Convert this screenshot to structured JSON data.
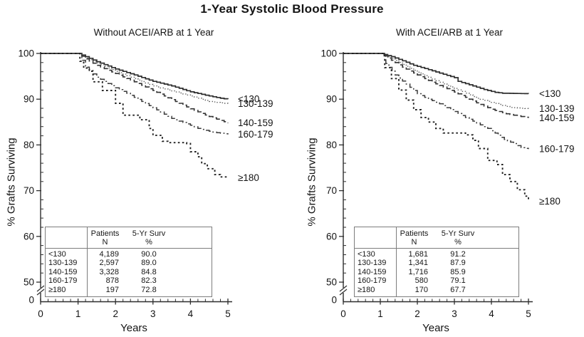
{
  "title": "1-Year Systolic Blood Pressure",
  "colors": {
    "axis": "#2e2e2e",
    "text": "#141414",
    "table_border": "#7d7d7d",
    "background": "#ffffff"
  },
  "chart_data": [
    {
      "type": "line",
      "subtype": "kaplan-meier-survival",
      "title": "Without ACEI/ARB at 1 Year",
      "xlabel": "Years",
      "ylabel": "% Grafts Surviving",
      "xlim": [
        0,
        5
      ],
      "ylim": [
        0,
        100
      ],
      "y_display_range": [
        50,
        100
      ],
      "y_axis_break": true,
      "grid": false,
      "legend_position": "labels-right-of-curves",
      "x_ticks": [
        0,
        1,
        2,
        3,
        4,
        5
      ],
      "y_ticks": [
        100,
        90,
        80,
        70,
        60,
        50
      ],
      "y_bottom_tick": "0",
      "x_minor_step": 0.2,
      "y_minor_step": 2,
      "series": [
        {
          "name": "under-130",
          "label": "<130",
          "linestyle": "solid",
          "step_texture": "fine",
          "points": [
            [
              0,
              100
            ],
            [
              1,
              100
            ],
            [
              1.2,
              99.3
            ],
            [
              1.5,
              98.2
            ],
            [
              2,
              96.6
            ],
            [
              2.5,
              95.3
            ],
            [
              3,
              93.9
            ],
            [
              3.5,
              92.9
            ],
            [
              4,
              91.6
            ],
            [
              4.5,
              90.7
            ],
            [
              4.8,
              90.2
            ],
            [
              5,
              90.0
            ]
          ]
        },
        {
          "name": "130-139",
          "label": "130-139",
          "linestyle": "dotted",
          "step_texture": "fine",
          "points": [
            [
              0,
              100
            ],
            [
              1,
              100
            ],
            [
              1.2,
              99.0
            ],
            [
              1.5,
              97.9
            ],
            [
              2,
              96.1
            ],
            [
              2.5,
              94.5
            ],
            [
              3,
              92.9
            ],
            [
              3.5,
              91.8
            ],
            [
              4,
              90.7
            ],
            [
              4.5,
              89.5
            ],
            [
              5,
              89.0
            ]
          ]
        },
        {
          "name": "140-159",
          "label": "140-159",
          "linestyle": "dashed",
          "step_texture": "fine",
          "points": [
            [
              0,
              100
            ],
            [
              1,
              100
            ],
            [
              1.2,
              98.8
            ],
            [
              1.5,
              97.4
            ],
            [
              2,
              95.6
            ],
            [
              2.5,
              93.8
            ],
            [
              3,
              91.9
            ],
            [
              3.5,
              89.9
            ],
            [
              4,
              87.9
            ],
            [
              4.5,
              86.2
            ],
            [
              5,
              84.8
            ]
          ]
        },
        {
          "name": "160-179",
          "label": "160-179",
          "linestyle": "dashdot",
          "step_texture": "fine",
          "points": [
            [
              0,
              100
            ],
            [
              1,
              100
            ],
            [
              1.2,
              97.0
            ],
            [
              1.5,
              94.8
            ],
            [
              2,
              92.5
            ],
            [
              2.3,
              91.3
            ],
            [
              2.9,
              88.6
            ],
            [
              3.5,
              85.8
            ],
            [
              4,
              84.3
            ],
            [
              4.2,
              83.6
            ],
            [
              4.6,
              82.8
            ],
            [
              5,
              82.3
            ]
          ]
        },
        {
          "name": "180-plus",
          "label": "≥180",
          "linestyle": "dotted-bold",
          "step_texture": "coarse",
          "points": [
            [
              0,
              100
            ],
            [
              1,
              100
            ],
            [
              1.05,
              98.3
            ],
            [
              1.15,
              96.8
            ],
            [
              1.3,
              96.1
            ],
            [
              1.4,
              93.8
            ],
            [
              1.65,
              91.9
            ],
            [
              2,
              89.1
            ],
            [
              2.2,
              86.5
            ],
            [
              2.65,
              85.5
            ],
            [
              2.9,
              83.6
            ],
            [
              3,
              82.1
            ],
            [
              3.25,
              80.8
            ],
            [
              3.4,
              80.5
            ],
            [
              3.9,
              80.3
            ],
            [
              4,
              78.5
            ],
            [
              4.2,
              77.4
            ],
            [
              4.3,
              75.9
            ],
            [
              4.45,
              74.8
            ],
            [
              4.65,
              73.5
            ],
            [
              4.8,
              73.0
            ],
            [
              5,
              72.8
            ]
          ]
        }
      ],
      "inset_table": {
        "col_headers": [
          [
            "Patients",
            "N"
          ],
          [
            "5-Yr Surv",
            "%"
          ]
        ],
        "rows": [
          [
            "<130",
            "4,189",
            "90.0"
          ],
          [
            "130-139",
            "2,597",
            "89.0"
          ],
          [
            "140-159",
            "3,328",
            "84.8"
          ],
          [
            "160-179",
            "878",
            "82.3"
          ],
          [
            "≥180",
            "197",
            "72.8"
          ]
        ]
      }
    },
    {
      "type": "line",
      "subtype": "kaplan-meier-survival",
      "title": "With ACEI/ARB at 1 Year",
      "xlabel": "Years",
      "ylabel": "% Grafts Surviving",
      "xlim": [
        0,
        5
      ],
      "ylim": [
        0,
        100
      ],
      "y_display_range": [
        50,
        100
      ],
      "y_axis_break": true,
      "grid": false,
      "legend_position": "labels-right-of-curves",
      "x_ticks": [
        0,
        1,
        2,
        3,
        4,
        5
      ],
      "y_ticks": [
        100,
        90,
        80,
        70,
        60,
        50
      ],
      "y_bottom_tick": "0",
      "x_minor_step": 0.2,
      "y_minor_step": 2,
      "series": [
        {
          "name": "under-130",
          "label": "<130",
          "linestyle": "solid",
          "step_texture": "fine",
          "points": [
            [
              0,
              100
            ],
            [
              1,
              100
            ],
            [
              1.3,
              99.3
            ],
            [
              1.6,
              98.4
            ],
            [
              1.9,
              97.4
            ],
            [
              2.2,
              96.7
            ],
            [
              2.6,
              95.7
            ],
            [
              3,
              94.7
            ],
            [
              3.1,
              93.9
            ],
            [
              3.5,
              92.9
            ],
            [
              3.8,
              92.1
            ],
            [
              4.1,
              91.5
            ],
            [
              4.3,
              91.3
            ],
            [
              5,
              91.2
            ]
          ]
        },
        {
          "name": "130-139",
          "label": "130-139",
          "linestyle": "dotted",
          "step_texture": "fine",
          "points": [
            [
              0,
              100
            ],
            [
              1,
              100
            ],
            [
              1.3,
              98.9
            ],
            [
              1.6,
              97.6
            ],
            [
              2,
              95.9
            ],
            [
              2.4,
              94.4
            ],
            [
              2.8,
              93.0
            ],
            [
              3.2,
              91.7
            ],
            [
              3.6,
              90.2
            ],
            [
              4,
              89.3
            ],
            [
              4.5,
              88.2
            ],
            [
              5,
              87.9
            ]
          ]
        },
        {
          "name": "140-159",
          "label": "140-159",
          "linestyle": "dashed",
          "step_texture": "fine",
          "points": [
            [
              0,
              100
            ],
            [
              1,
              100
            ],
            [
              1.3,
              98.5
            ],
            [
              1.6,
              97.0
            ],
            [
              2,
              95.3
            ],
            [
              2.4,
              93.7
            ],
            [
              2.8,
              92.3
            ],
            [
              3.2,
              90.8
            ],
            [
              3.6,
              89.2
            ],
            [
              4,
              87.8
            ],
            [
              4.4,
              86.8
            ],
            [
              5,
              85.9
            ]
          ]
        },
        {
          "name": "160-179",
          "label": "160-179",
          "linestyle": "dashdot",
          "step_texture": "fine",
          "points": [
            [
              0,
              100
            ],
            [
              1,
              100
            ],
            [
              1.15,
              97.8
            ],
            [
              1.4,
              95.3
            ],
            [
              1.7,
              93.3
            ],
            [
              2,
              91.2
            ],
            [
              2.3,
              90.0
            ],
            [
              2.6,
              89.0
            ],
            [
              3,
              87.3
            ],
            [
              3.3,
              86.0
            ],
            [
              3.6,
              84.8
            ],
            [
              3.9,
              83.6
            ],
            [
              4.1,
              82.6
            ],
            [
              4.35,
              81.2
            ],
            [
              4.6,
              80.3
            ],
            [
              4.8,
              79.4
            ],
            [
              5,
              79.1
            ]
          ]
        },
        {
          "name": "180-plus",
          "label": "≥180",
          "linestyle": "dotted-bold",
          "step_texture": "coarse",
          "points": [
            [
              0,
              100
            ],
            [
              1,
              100
            ],
            [
              1.12,
              96.9
            ],
            [
              1.3,
              94.5
            ],
            [
              1.5,
              92.0
            ],
            [
              1.7,
              89.8
            ],
            [
              1.9,
              87.7
            ],
            [
              2.1,
              86.0
            ],
            [
              2.3,
              85.0
            ],
            [
              2.5,
              83.6
            ],
            [
              2.7,
              82.6
            ],
            [
              3.3,
              82.2
            ],
            [
              3.5,
              81.0
            ],
            [
              3.65,
              79.2
            ],
            [
              3.9,
              76.6
            ],
            [
              4.15,
              75.7
            ],
            [
              4.3,
              73.5
            ],
            [
              4.5,
              72.0
            ],
            [
              4.7,
              70.2
            ],
            [
              4.9,
              68.8
            ],
            [
              5,
              67.7
            ]
          ]
        }
      ],
      "inset_table": {
        "col_headers": [
          [
            "Patients",
            "N"
          ],
          [
            "5-Yr Surv",
            "%"
          ]
        ],
        "rows": [
          [
            "<130",
            "1,681",
            "91.2"
          ],
          [
            "130-139",
            "1,341",
            "87.9"
          ],
          [
            "140-159",
            "1,716",
            "85.9"
          ],
          [
            "160-179",
            "580",
            "79.1"
          ],
          [
            "≥180",
            "170",
            "67.7"
          ]
        ]
      }
    }
  ]
}
